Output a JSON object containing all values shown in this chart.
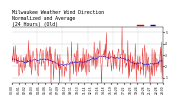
{
  "title": "Milwaukee Weather Wind Direction\nNormalized and Average\n(24 Hours) (Old)",
  "bg_color": "#ffffff",
  "plot_bg_color": "#ffffff",
  "grid_color": "#aaaaaa",
  "red_color": "#dd0000",
  "blue_color": "#0000cc",
  "n_points": 288,
  "y_min": 0.5,
  "y_max": 5.5,
  "y_ticks": [
    1,
    2,
    3,
    4,
    5
  ],
  "title_fontsize": 3.5,
  "tick_fontsize": 2.2,
  "seed": 42
}
